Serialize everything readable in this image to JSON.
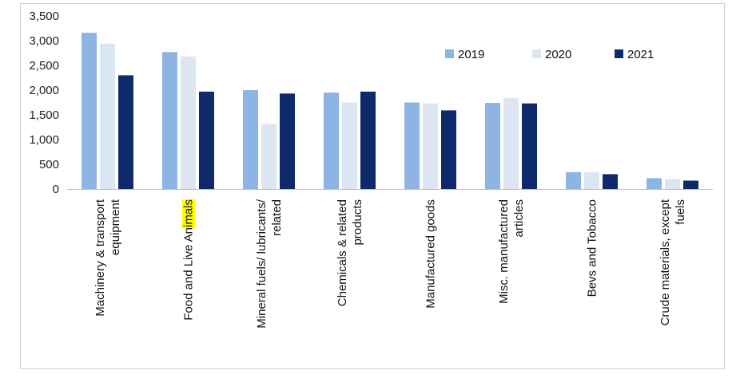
{
  "chart_data": {
    "type": "bar",
    "title": "",
    "xlabel": "",
    "ylabel": "",
    "ylim": [
      0,
      3500
    ],
    "yticks": [
      0,
      500,
      1000,
      1500,
      2000,
      2500,
      3000,
      3500
    ],
    "ytick_labels": [
      "0",
      "500",
      "1,000",
      "1,500",
      "2,000",
      "2,500",
      "3,000",
      "3,500"
    ],
    "grid": false,
    "legend_position": "top-right",
    "categories": [
      [
        "Machinery & transport",
        "equipment"
      ],
      [
        "Food and Live Animals"
      ],
      [
        "Mineral fuels/ lubricants/",
        "related"
      ],
      [
        "Chemicals & related",
        "products"
      ],
      [
        "Manufactured goods"
      ],
      [
        "Misc. manufactured",
        "articles"
      ],
      [
        "Bevs and Tobacco"
      ],
      [
        "Crude materials, except",
        "fuels"
      ]
    ],
    "highlight": {
      "category_index": 1,
      "text": "Food",
      "color": "#ffff00"
    },
    "series": [
      {
        "name": "2019",
        "color": "#8db4e2",
        "values": [
          3160,
          2770,
          2000,
          1950,
          1750,
          1740,
          340,
          220
        ]
      },
      {
        "name": "2020",
        "color": "#dce6f2",
        "values": [
          2940,
          2680,
          1320,
          1750,
          1730,
          1840,
          340,
          200
        ]
      },
      {
        "name": "2021",
        "color": "#0f2a6b",
        "values": [
          2300,
          1970,
          1930,
          1970,
          1590,
          1730,
          300,
          170
        ]
      }
    ]
  }
}
